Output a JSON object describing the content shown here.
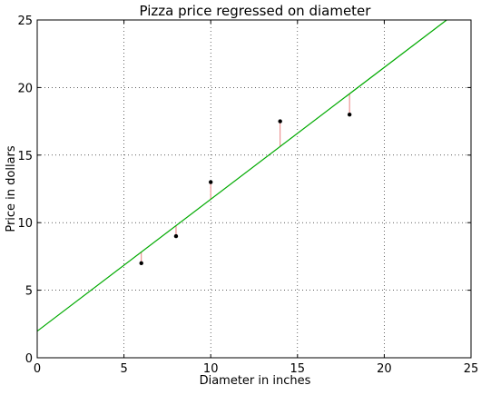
{
  "chart_data": {
    "type": "scatter",
    "title": "Pizza price regressed on diameter",
    "xlabel": "Diameter in inches",
    "ylabel": "Price in dollars",
    "xlim": [
      0,
      25
    ],
    "ylim": [
      0,
      25
    ],
    "x_ticks": [
      0,
      5,
      10,
      15,
      20,
      25
    ],
    "y_ticks": [
      0,
      5,
      10,
      15,
      20,
      25
    ],
    "x_tick_labels": [
      "0",
      "5",
      "10",
      "15",
      "20",
      "25"
    ],
    "y_tick_labels": [
      "0",
      "5",
      "10",
      "15",
      "20",
      "25"
    ],
    "grid": true,
    "series": [
      {
        "kind": "scatter",
        "x": [
          6,
          8,
          10,
          14,
          18
        ],
        "y": [
          7,
          9,
          13,
          17.5,
          18
        ],
        "color": "#000000"
      }
    ],
    "regression_line": {
      "intercept": 1.97,
      "slope": 0.976,
      "x_range": [
        0,
        25
      ],
      "color": "#00aa00"
    },
    "residuals": {
      "color": "#e88080"
    }
  }
}
